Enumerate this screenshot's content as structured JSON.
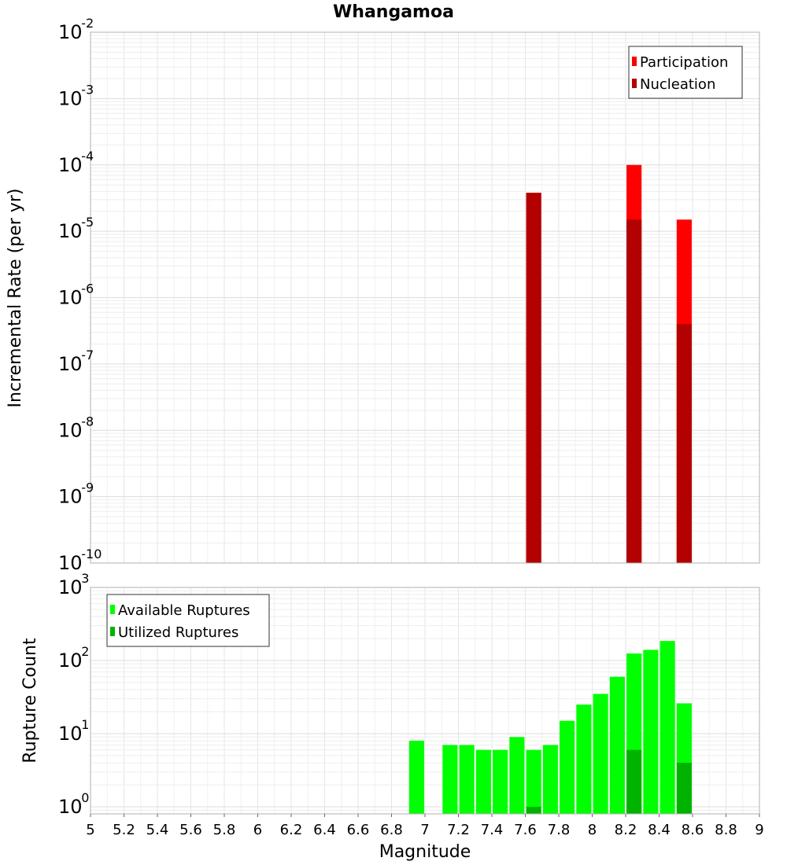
{
  "chart_data": [
    {
      "type": "bar",
      "title": "Whangamoa",
      "xlabel": "",
      "ylabel": "Incremental Rate (per yr)",
      "yscale": "log",
      "ylim": [
        1e-10,
        0.01
      ],
      "xlim": [
        5,
        9
      ],
      "y_tick_labels": [
        {
          "base": "10",
          "exp": "-10"
        },
        {
          "base": "10",
          "exp": "-9"
        },
        {
          "base": "10",
          "exp": "-8"
        },
        {
          "base": "10",
          "exp": "-7"
        },
        {
          "base": "10",
          "exp": "-6"
        },
        {
          "base": "10",
          "exp": "-5"
        },
        {
          "base": "10",
          "exp": "-4"
        },
        {
          "base": "10",
          "exp": "-3"
        },
        {
          "base": "10",
          "exp": "-2"
        }
      ],
      "grid": true,
      "legend_position": "top-right",
      "series": [
        {
          "name": "Participation",
          "color": "#ff0000",
          "points": [
            {
              "x": 7.65,
              "y": 3.8e-05
            },
            {
              "x": 8.25,
              "y": 0.0001
            },
            {
              "x": 8.55,
              "y": 1.5e-05
            }
          ]
        },
        {
          "name": "Nucleation",
          "color": "#b30000",
          "points": [
            {
              "x": 7.65,
              "y": 3.8e-05
            },
            {
              "x": 8.25,
              "y": 1.5e-05
            },
            {
              "x": 8.55,
              "y": 4e-07
            }
          ]
        }
      ]
    },
    {
      "type": "bar",
      "xlabel": "Magnitude",
      "ylabel": "Rupture Count",
      "yscale": "log",
      "ylim": [
        0.8,
        1000
      ],
      "xlim": [
        5,
        9
      ],
      "x_tick_labels": [
        "5",
        "5.2",
        "5.4",
        "5.6",
        "5.8",
        "6",
        "6.2",
        "6.4",
        "6.6",
        "6.8",
        "7",
        "7.2",
        "7.4",
        "7.6",
        "7.8",
        "8",
        "8.2",
        "8.4",
        "8.6",
        "8.8",
        "9"
      ],
      "y_tick_labels": [
        {
          "base": "10",
          "exp": "0"
        },
        {
          "base": "10",
          "exp": "1"
        },
        {
          "base": "10",
          "exp": "2"
        },
        {
          "base": "10",
          "exp": "3"
        }
      ],
      "grid": true,
      "legend_position": "top-left",
      "series": [
        {
          "name": "Available Ruptures",
          "color": "#00ff00",
          "points": [
            {
              "x": 6.95,
              "y": 8
            },
            {
              "x": 7.15,
              "y": 7
            },
            {
              "x": 7.25,
              "y": 7
            },
            {
              "x": 7.35,
              "y": 6
            },
            {
              "x": 7.45,
              "y": 6
            },
            {
              "x": 7.55,
              "y": 9
            },
            {
              "x": 7.65,
              "y": 6
            },
            {
              "x": 7.75,
              "y": 7
            },
            {
              "x": 7.85,
              "y": 15
            },
            {
              "x": 7.95,
              "y": 25
            },
            {
              "x": 8.05,
              "y": 35
            },
            {
              "x": 8.15,
              "y": 60
            },
            {
              "x": 8.25,
              "y": 125
            },
            {
              "x": 8.35,
              "y": 140
            },
            {
              "x": 8.45,
              "y": 185
            },
            {
              "x": 8.55,
              "y": 26
            }
          ]
        },
        {
          "name": "Utilized Ruptures",
          "color": "#00b300",
          "points": [
            {
              "x": 7.65,
              "y": 1
            },
            {
              "x": 8.25,
              "y": 6
            },
            {
              "x": 8.55,
              "y": 4
            }
          ]
        }
      ]
    }
  ]
}
